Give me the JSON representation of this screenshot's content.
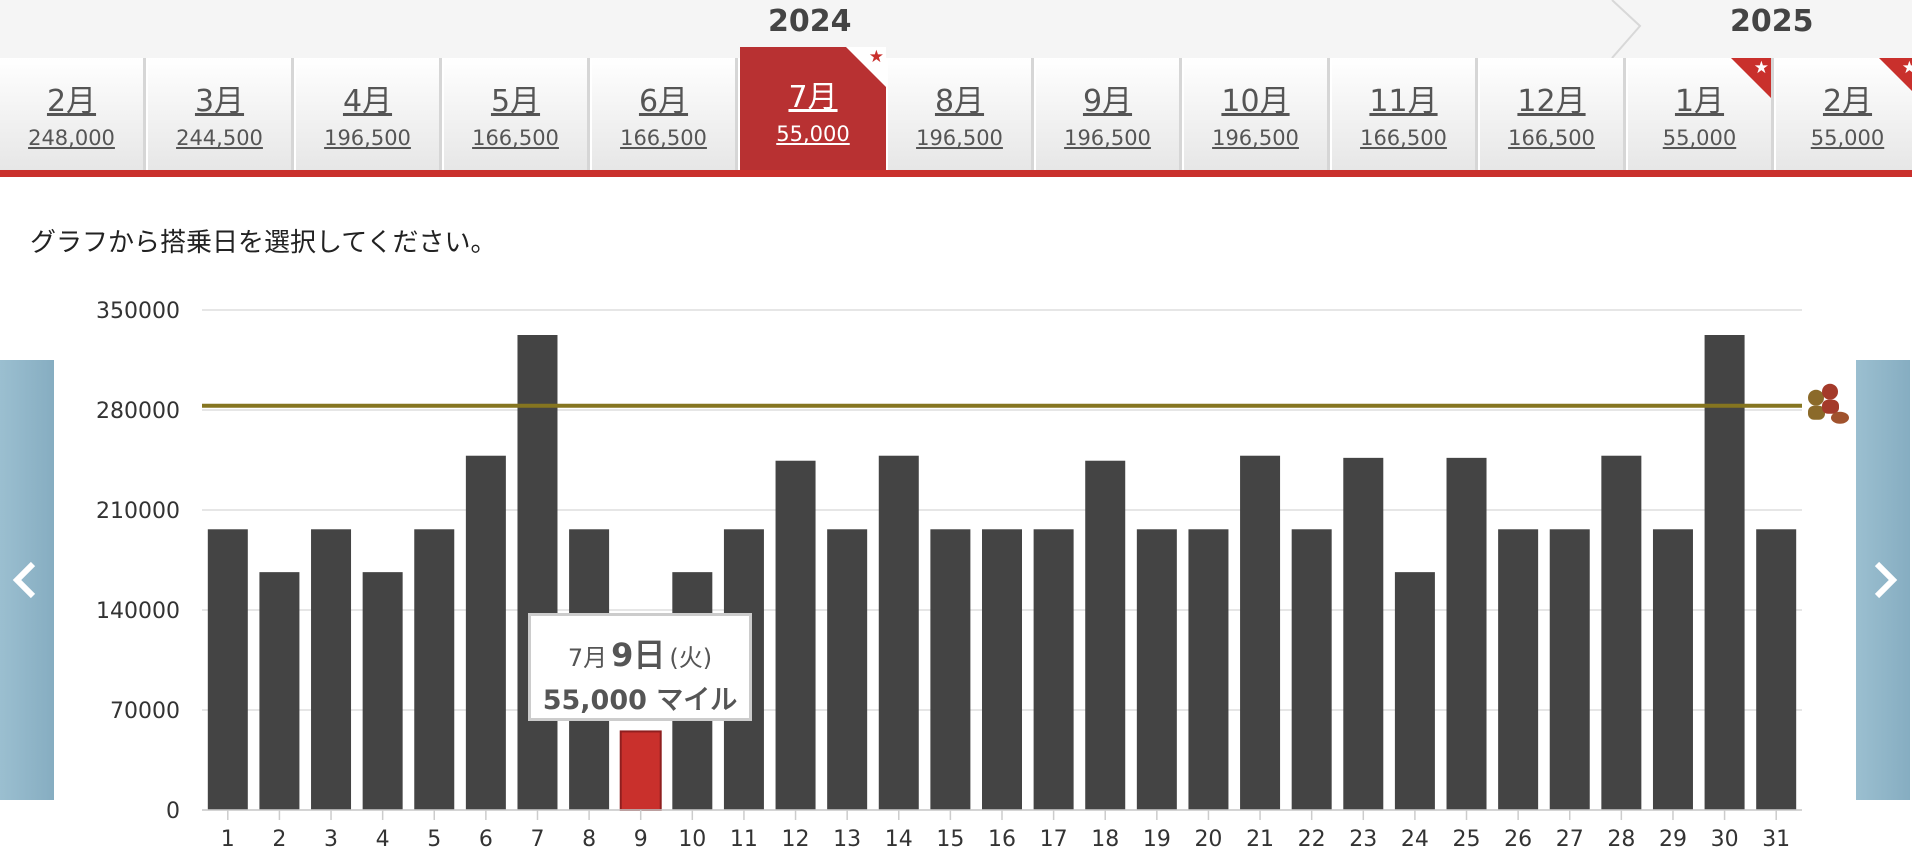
{
  "years": {
    "current": "2024",
    "next": "2025"
  },
  "months": [
    {
      "label": "2月",
      "price": "248,000",
      "active": false,
      "star": false
    },
    {
      "label": "3月",
      "price": "244,500",
      "active": false,
      "star": false
    },
    {
      "label": "4月",
      "price": "196,500",
      "active": false,
      "star": false
    },
    {
      "label": "5月",
      "price": "166,500",
      "active": false,
      "star": false
    },
    {
      "label": "6月",
      "price": "166,500",
      "active": false,
      "star": false
    },
    {
      "label": "7月",
      "price": "55,000",
      "active": true,
      "star": true
    },
    {
      "label": "8月",
      "price": "196,500",
      "active": false,
      "star": false
    },
    {
      "label": "9月",
      "price": "196,500",
      "active": false,
      "star": false
    },
    {
      "label": "10月",
      "price": "196,500",
      "active": false,
      "star": false
    },
    {
      "label": "11月",
      "price": "166,500",
      "active": false,
      "star": false
    },
    {
      "label": "12月",
      "price": "166,500",
      "active": false,
      "star": false
    },
    {
      "label": "1月",
      "price": "55,000",
      "active": false,
      "star": true
    },
    {
      "label": "2月",
      "price": "55,000",
      "active": false,
      "star": true
    }
  ],
  "instruction": "グラフから搭乗日を選択してください。",
  "tooltip": {
    "month": "7月",
    "day": "9日",
    "weekday": "(火)",
    "miles": "55,000 マイル"
  },
  "icons": {
    "prev": "chevron-left-icon",
    "next": "chevron-right-icon",
    "marker": "people-icon",
    "star": "star-icon"
  },
  "colors": {
    "accent": "#c9302c",
    "active_tab": "#b83132",
    "bar": "#444444",
    "selected_bar": "#c9302c",
    "reference_line": "#857520",
    "nav": "#8fb3c6"
  },
  "chart_data": {
    "type": "bar",
    "categories": [
      "1",
      "2",
      "3",
      "4",
      "5",
      "6",
      "7",
      "8",
      "9",
      "10",
      "11",
      "12",
      "13",
      "14",
      "15",
      "16",
      "17",
      "18",
      "19",
      "20",
      "21",
      "22",
      "23",
      "24",
      "25",
      "26",
      "27",
      "28",
      "29",
      "30",
      "31"
    ],
    "values": [
      196500,
      166500,
      196500,
      166500,
      196500,
      248000,
      332500,
      196500,
      55000,
      166500,
      196500,
      244500,
      196500,
      248000,
      196500,
      196500,
      196500,
      244500,
      196500,
      196500,
      248000,
      196500,
      246500,
      166500,
      246500,
      196500,
      196500,
      248000,
      196500,
      332500,
      196500
    ],
    "selected_index": 8,
    "reference_line": 283000,
    "yticks": [
      "0",
      "70000",
      "140000",
      "210000",
      "280000",
      "350000"
    ],
    "ylim": [
      0,
      350000
    ],
    "grid": true
  }
}
